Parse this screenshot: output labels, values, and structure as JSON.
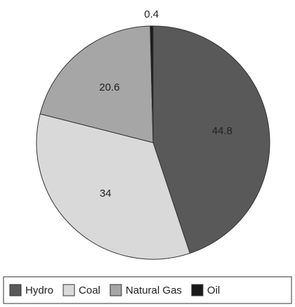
{
  "chart_data": {
    "type": "pie",
    "categories": [
      "Hydro",
      "Coal",
      "Natural Gas",
      "Oil"
    ],
    "values": [
      44.8,
      34,
      20.6,
      0.4
    ],
    "colors": [
      "#595959",
      "#d9d9d9",
      "#a6a6a6",
      "#1a1a1a"
    ],
    "legend": "bottom"
  }
}
